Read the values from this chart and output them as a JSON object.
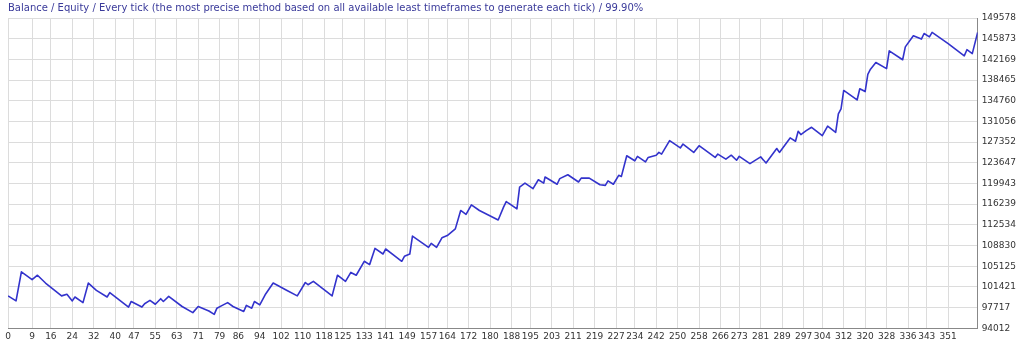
{
  "chart_data": {
    "type": "line",
    "title": "Balance / Equity / Every tick (the most precise method based on all available least timeframes to generate each tick) / 99.90%",
    "series": [
      {
        "color": "#3333cc",
        "x": [
          0,
          3,
          5,
          9,
          11,
          14,
          20,
          22,
          24,
          25,
          28,
          30,
          33,
          37,
          38,
          45,
          46,
          50,
          51,
          53,
          55,
          57,
          58,
          60,
          65,
          69,
          71,
          75,
          77,
          78,
          80,
          82,
          84,
          88,
          89,
          91,
          92,
          94,
          96,
          99,
          104,
          108,
          111,
          112,
          114,
          121,
          123,
          126,
          128,
          130,
          133,
          135,
          137,
          140,
          141,
          147,
          148,
          150,
          151,
          157,
          158,
          160,
          162,
          164,
          167,
          169,
          171,
          173,
          176,
          183,
          185,
          186,
          190,
          191,
          193,
          196,
          198,
          200,
          200.5,
          205,
          206,
          209,
          213,
          214,
          217,
          221,
          223,
          224,
          226,
          228,
          229,
          231,
          234,
          235,
          238,
          239,
          242,
          243,
          244,
          247,
          251,
          252,
          256,
          258,
          264,
          265,
          268,
          270,
          272,
          273,
          277,
          281,
          283,
          287,
          288,
          292,
          294,
          295,
          296,
          298,
          300,
          304,
          306,
          309,
          310,
          311,
          312,
          317,
          318,
          320,
          321,
          322,
          324,
          328,
          329,
          334,
          335,
          338,
          341,
          342,
          344,
          345,
          351,
          357,
          358,
          360,
          362
        ],
        "values": [
          99800,
          98900,
          104100,
          102700,
          103500,
          102100,
          99800,
          100100,
          98900,
          99600,
          98600,
          102100,
          100800,
          99600,
          100400,
          97800,
          98800,
          97800,
          98400,
          99000,
          98300,
          99300,
          98800,
          99700,
          97900,
          96800,
          97900,
          97100,
          96500,
          97600,
          98100,
          98600,
          97900,
          97000,
          98100,
          97600,
          98800,
          98200,
          100000,
          102100,
          100800,
          99800,
          102200,
          101800,
          102400,
          99800,
          103500,
          102400,
          104000,
          103500,
          106000,
          105400,
          108300,
          107300,
          108200,
          106000,
          106900,
          107300,
          110500,
          108500,
          109200,
          108500,
          110200,
          110600,
          111800,
          115100,
          114400,
          116100,
          115100,
          113400,
          115700,
          116700,
          115400,
          119300,
          120000,
          119000,
          120600,
          120000,
          121100,
          119800,
          120800,
          121500,
          120200,
          120900,
          120900,
          119700,
          119600,
          120400,
          119800,
          121400,
          121200,
          124900,
          124000,
          124800,
          123800,
          124600,
          125000,
          125500,
          125200,
          127600,
          126300,
          127000,
          125500,
          126700,
          124600,
          125200,
          124300,
          125000,
          124100,
          124800,
          123500,
          124700,
          123600,
          126200,
          125500,
          128100,
          127500,
          129300,
          128700,
          129400,
          130000,
          128500,
          130200,
          129100,
          132400,
          133300,
          136600,
          134900,
          136900,
          136400,
          139500,
          140400,
          141600,
          140500,
          143700,
          142100,
          144400,
          146400,
          145800,
          146800,
          146200,
          147000,
          145000,
          142800,
          143900,
          143200,
          147000
        ]
      }
    ],
    "xlim": [
      0,
      362
    ],
    "xticks": [
      0,
      9,
      16,
      24,
      32,
      40,
      47,
      55,
      63,
      71,
      79,
      86,
      94,
      102,
      110,
      118,
      125,
      133,
      141,
      149,
      157,
      164,
      172,
      180,
      188,
      195,
      203,
      211,
      219,
      227,
      234,
      242,
      250,
      258,
      266,
      273,
      281,
      289,
      297,
      304,
      312,
      320,
      328,
      336,
      343,
      351
    ],
    "ylim": [
      94012,
      149578
    ],
    "yticks": [
      94012,
      97717,
      101421,
      105125,
      108830,
      112534,
      116239,
      119943,
      123647,
      127352,
      131056,
      134760,
      138465,
      142169,
      145873,
      149578
    ],
    "grid": true,
    "legend": false,
    "marker": "none",
    "line_style": "solid"
  }
}
